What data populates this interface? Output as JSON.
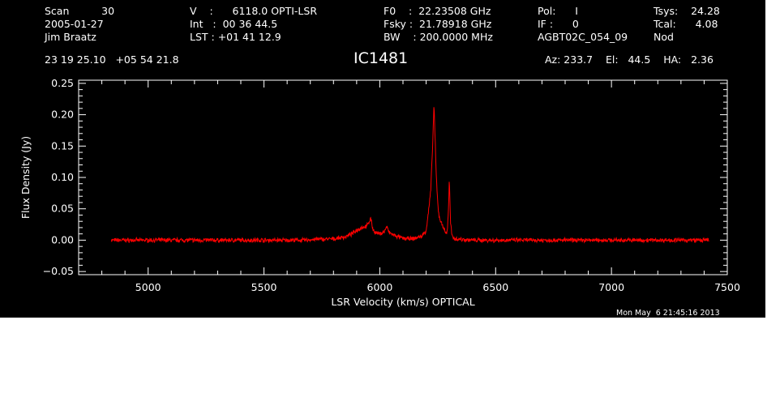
{
  "header": {
    "row1": {
      "scan": "Scan          30",
      "velocity": "V    :      6118.0 OPTI-LSR",
      "f0": "F0    :  22.23508 GHz",
      "pol": "Pol:      I",
      "tsys": "Tsys:    24.28"
    },
    "row2": {
      "date": "2005-01-27",
      "int": "Int   :  00 36 44.5",
      "fsky": "Fsky :  21.78918 GHz",
      "if": "IF :      0",
      "tcal": "Tcal:      4.08"
    },
    "row3": {
      "observer": "Jim Braatz",
      "lst": "LST : +01 41 12.9",
      "bw": "BW    : 200.0000 MHz",
      "project": "AGBT02C_054_09",
      "mode": "Nod"
    },
    "row4": {
      "coords": "23 19 25.10   +05 54 21.8",
      "source": "IC1481",
      "azelha": "Az: 233.7    El:   44.5    HA:   2.36"
    }
  },
  "timestamp": "Mon May  6 21:45:16 2013",
  "colors": {
    "background": "#000000",
    "axes": "#ffffff",
    "trace": "#ff0000"
  },
  "chart_data": {
    "type": "line",
    "xlabel": "LSR Velocity (km/s) OPTICAL",
    "ylabel": "Flux Density (Jy)",
    "xlim": [
      4700,
      7500
    ],
    "ylim": [
      -0.055,
      0.255
    ],
    "xticks": [
      5000,
      5500,
      6000,
      6500,
      7000,
      7500
    ],
    "yticks": [
      -0.05,
      0.0,
      0.05,
      0.1,
      0.15,
      0.2,
      0.25
    ],
    "ytick_labels": [
      "−0.05",
      "0.00",
      "0.05",
      "0.10",
      "0.15",
      "0.20",
      "0.25"
    ],
    "grid": false,
    "series": [
      {
        "x": [
          4840,
          4900,
          5000,
          5100,
          5200,
          5300,
          5400,
          5500,
          5600,
          5690,
          5700,
          5800,
          5850,
          5880,
          5900,
          5920,
          5940,
          5950,
          5960,
          5970,
          5980,
          6000,
          6020,
          6030,
          6040,
          6060,
          6080,
          6100,
          6140,
          6180,
          6200,
          6210,
          6220,
          6228,
          6234,
          6238,
          6242,
          6246,
          6250,
          6255,
          6262,
          6270,
          6280,
          6288,
          6292,
          6296,
          6300,
          6305,
          6312,
          6330,
          6360,
          6400,
          6500,
          6600,
          6700,
          6800,
          6900,
          7000,
          7100,
          7200,
          7300,
          7420
        ],
        "y": [
          0.0,
          0.0,
          0.0,
          0.0,
          0.0,
          0.0,
          0.0,
          0.0,
          0.0,
          0.0,
          0.001,
          0.002,
          0.005,
          0.01,
          0.016,
          0.02,
          0.022,
          0.025,
          0.036,
          0.018,
          0.012,
          0.01,
          0.014,
          0.022,
          0.012,
          0.008,
          0.005,
          0.003,
          0.002,
          0.006,
          0.015,
          0.045,
          0.08,
          0.15,
          0.218,
          0.17,
          0.12,
          0.085,
          0.06,
          0.04,
          0.03,
          0.025,
          0.015,
          0.01,
          0.02,
          0.045,
          0.098,
          0.03,
          0.005,
          0.002,
          0.001,
          0.0,
          0.0,
          0.0,
          0.0,
          0.0,
          0.0,
          0.0,
          0.0,
          0.0,
          0.0,
          0.0
        ]
      }
    ]
  }
}
